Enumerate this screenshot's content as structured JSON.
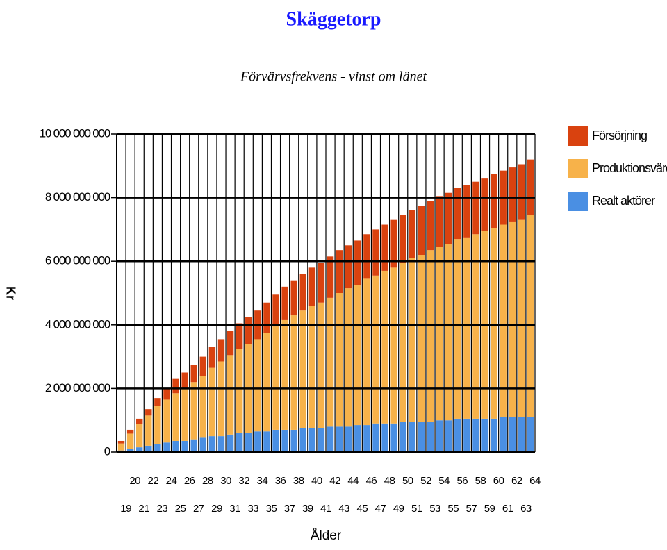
{
  "chart_data": {
    "type": "stacked-bar",
    "title": "Skäggetorp",
    "subtitle": "Förvärvsfrekvens - vinst om länet",
    "y_label": "Kr",
    "x_label": "Ålder",
    "categories": [
      "19",
      "20",
      "21",
      "22",
      "23",
      "24",
      "25",
      "26",
      "27",
      "28",
      "29",
      "30",
      "31",
      "32",
      "33",
      "34",
      "35",
      "36",
      "37",
      "38",
      "39",
      "40",
      "41",
      "42",
      "43",
      "44",
      "45",
      "46",
      "47",
      "48",
      "49",
      "50",
      "51",
      "52",
      "53",
      "54",
      "55",
      "56",
      "57",
      "58",
      "59",
      "60",
      "61",
      "62",
      "63",
      "64"
    ],
    "series": [
      {
        "name": "Realt aktörer",
        "color": "#4a8fe3",
        "values": [
          50000000,
          100000000,
          150000000,
          200000000,
          250000000,
          300000000,
          350000000,
          350000000,
          400000000,
          450000000,
          500000000,
          500000000,
          550000000,
          600000000,
          600000000,
          650000000,
          650000000,
          700000000,
          700000000,
          700000000,
          750000000,
          750000000,
          750000000,
          800000000,
          800000000,
          800000000,
          850000000,
          850000000,
          900000000,
          900000000,
          900000000,
          950000000,
          950000000,
          950000000,
          950000000,
          1000000000,
          1000000000,
          1050000000,
          1050000000,
          1050000000,
          1050000000,
          1050000000,
          1100000000,
          1100000000,
          1100000000,
          1100000000
        ]
      },
      {
        "name": "Produktionsvärde",
        "color": "#f7b24a",
        "values": [
          220000000,
          480000000,
          740000000,
          950000000,
          1200000000,
          1350000000,
          1500000000,
          1650000000,
          1800000000,
          1950000000,
          2150000000,
          2350000000,
          2500000000,
          2650000000,
          2800000000,
          2900000000,
          3100000000,
          3250000000,
          3450000000,
          3600000000,
          3700000000,
          3850000000,
          3950000000,
          4050000000,
          4200000000,
          4350000000,
          4400000000,
          4600000000,
          4650000000,
          4800000000,
          4900000000,
          5000000000,
          5150000000,
          5250000000,
          5400000000,
          5450000000,
          5550000000,
          5650000000,
          5700000000,
          5800000000,
          5900000000,
          6000000000,
          6050000000,
          6150000000,
          6200000000,
          6350000000
        ]
      },
      {
        "name": "Försörjning",
        "color": "#d9420f",
        "values": [
          80000000,
          120000000,
          160000000,
          200000000,
          250000000,
          350000000,
          450000000,
          500000000,
          550000000,
          600000000,
          650000000,
          700000000,
          750000000,
          800000000,
          850000000,
          900000000,
          950000000,
          1000000000,
          1050000000,
          1100000000,
          1150000000,
          1200000000,
          1250000000,
          1300000000,
          1350000000,
          1350000000,
          1400000000,
          1400000000,
          1450000000,
          1450000000,
          1500000000,
          1500000000,
          1500000000,
          1550000000,
          1550000000,
          1600000000,
          1600000000,
          1600000000,
          1650000000,
          1650000000,
          1650000000,
          1700000000,
          1700000000,
          1700000000,
          1750000000,
          1750000000
        ]
      }
    ],
    "ylim": [
      0,
      10000000000
    ],
    "yticks": [
      {
        "value": 0,
        "label": "0"
      },
      {
        "value": 2000000000,
        "label": "2 000 000 000"
      },
      {
        "value": 4000000000,
        "label": "4 000 000 000"
      },
      {
        "value": 6000000000,
        "label": "6 000 000 000"
      },
      {
        "value": 8000000000,
        "label": "8 000 000 000"
      },
      {
        "value": 10000000000,
        "label": "10 000 000 000"
      }
    ],
    "grid": true,
    "legend": "right"
  }
}
